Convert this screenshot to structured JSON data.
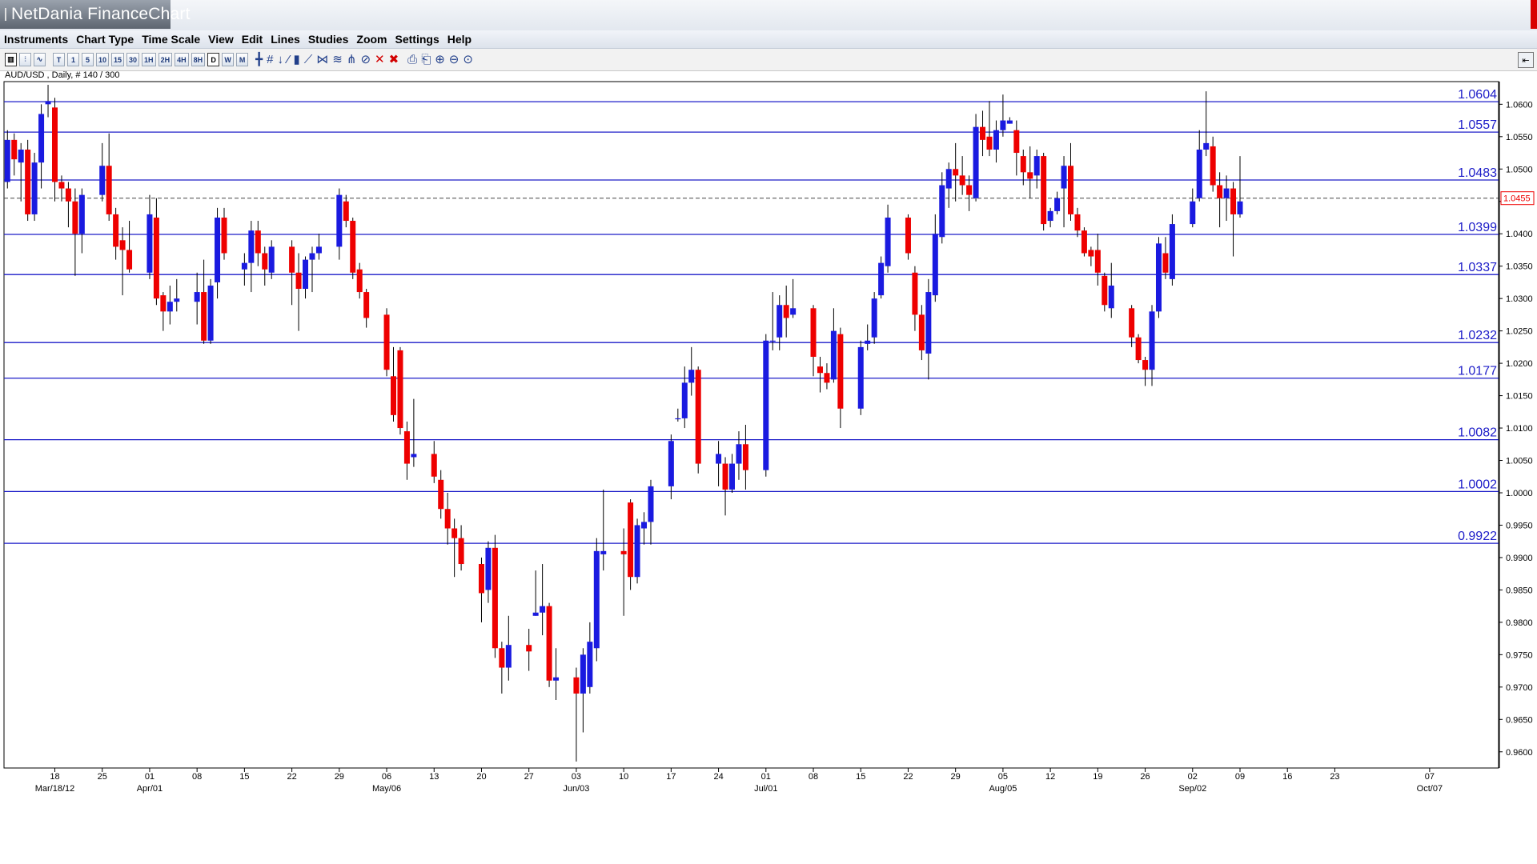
{
  "window": {
    "title": "NetDania FinanceChart"
  },
  "menu": [
    "Instruments",
    "Chart Type",
    "Time Scale",
    "View",
    "Edit",
    "Lines",
    "Studies",
    "Zoom",
    "Settings",
    "Help"
  ],
  "toolbar": {
    "timeframes": [
      "T",
      "1",
      "5",
      "10",
      "15",
      "30",
      "1H",
      "2H",
      "4H",
      "8H",
      "D",
      "W",
      "M"
    ],
    "active_timeframe": "D"
  },
  "instrument_label": "AUD/USD , Daily, # 140 / 300",
  "chart_data": {
    "type": "candlestick",
    "instrument": "AUD/USD",
    "interval": "Daily",
    "ylim": [
      0.9575,
      1.0635
    ],
    "y_ticks": [
      "1.0600",
      "1.0550",
      "1.0500",
      "1.0450",
      "1.0400",
      "1.0350",
      "1.0300",
      "1.0250",
      "1.0200",
      "1.0150",
      "1.0100",
      "1.0050",
      "1.0000",
      "0.9950",
      "0.9900",
      "0.9850",
      "0.9800",
      "0.9750",
      "0.9700",
      "0.9650",
      "0.9600"
    ],
    "x_ticks": [
      {
        "d": 0,
        "label": "18",
        "month": "Mar/18/12"
      },
      {
        "d": 7,
        "label": "25"
      },
      {
        "d": 14,
        "label": "01",
        "month": "Apr/01"
      },
      {
        "d": 21,
        "label": "08"
      },
      {
        "d": 28,
        "label": "15"
      },
      {
        "d": 35,
        "label": "22"
      },
      {
        "d": 42,
        "label": "29"
      },
      {
        "d": 49,
        "label": "06",
        "month": "May/06"
      },
      {
        "d": 56,
        "label": "13"
      },
      {
        "d": 63,
        "label": "20"
      },
      {
        "d": 70,
        "label": "27"
      },
      {
        "d": 77,
        "label": "03",
        "month": "Jun/03"
      },
      {
        "d": 84,
        "label": "10"
      },
      {
        "d": 91,
        "label": "17"
      },
      {
        "d": 98,
        "label": "24"
      },
      {
        "d": 105,
        "label": "01",
        "month": "Jul/01"
      },
      {
        "d": 112,
        "label": "08"
      },
      {
        "d": 119,
        "label": "15"
      },
      {
        "d": 126,
        "label": "22"
      },
      {
        "d": 133,
        "label": "29"
      },
      {
        "d": 140,
        "label": "05",
        "month": "Aug/05"
      },
      {
        "d": 147,
        "label": "12"
      },
      {
        "d": 154,
        "label": "19"
      },
      {
        "d": 161,
        "label": "26"
      },
      {
        "d": 168,
        "label": "02",
        "month": "Sep/02"
      },
      {
        "d": 175,
        "label": "09"
      },
      {
        "d": 182,
        "label": "16"
      },
      {
        "d": 189,
        "label": "23"
      },
      {
        "d": 203,
        "label": "07",
        "month": "Oct/07"
      }
    ],
    "horizontal_lines": [
      1.0604,
      1.0557,
      1.0483,
      1.0399,
      1.0337,
      1.0232,
      1.0177,
      1.0082,
      1.0002,
      0.9922
    ],
    "horizontal_line_labels": [
      "1.0604",
      "1.0557",
      "1.0483",
      "1.0399",
      "1.0337",
      "1.0232",
      "1.0177",
      "1.0082",
      "1.0002",
      "0.9922"
    ],
    "current_price": 1.0455,
    "current_price_label": "1.0455",
    "candles": [
      {
        "d": -7,
        "o": 1.048,
        "h": 1.056,
        "l": 1.047,
        "c": 1.0545
      },
      {
        "d": -6,
        "o": 1.0545,
        "h": 1.0555,
        "l": 1.049,
        "c": 1.0515
      },
      {
        "d": -5,
        "o": 1.051,
        "h": 1.054,
        "l": 1.045,
        "c": 1.053
      },
      {
        "d": -4,
        "o": 1.053,
        "h": 1.0545,
        "l": 1.042,
        "c": 1.043
      },
      {
        "d": -3,
        "o": 1.043,
        "h": 1.0525,
        "l": 1.042,
        "c": 1.051
      },
      {
        "d": -2,
        "o": 1.051,
        "h": 1.06,
        "l": 1.047,
        "c": 1.0585
      },
      {
        "d": -1,
        "o": 1.06,
        "h": 1.063,
        "l": 1.058,
        "c": 1.0605
      },
      {
        "d": 0,
        "o": 1.0595,
        "h": 1.061,
        "l": 1.045,
        "c": 1.048
      },
      {
        "d": 1,
        "o": 1.048,
        "h": 1.049,
        "l": 1.045,
        "c": 1.047
      },
      {
        "d": 2,
        "o": 1.047,
        "h": 1.048,
        "l": 1.041,
        "c": 1.045
      },
      {
        "d": 3,
        "o": 1.045,
        "h": 1.047,
        "l": 1.0335,
        "c": 1.04
      },
      {
        "d": 4,
        "o": 1.04,
        "h": 1.047,
        "l": 1.037,
        "c": 1.046
      },
      {
        "d": 7,
        "o": 1.046,
        "h": 1.054,
        "l": 1.045,
        "c": 1.0505
      },
      {
        "d": 8,
        "o": 1.0505,
        "h": 1.0555,
        "l": 1.042,
        "c": 1.043
      },
      {
        "d": 9,
        "o": 1.043,
        "h": 1.044,
        "l": 1.036,
        "c": 1.038
      },
      {
        "d": 10,
        "o": 1.039,
        "h": 1.041,
        "l": 1.0305,
        "c": 1.0375
      },
      {
        "d": 11,
        "o": 1.0375,
        "h": 1.042,
        "l": 1.034,
        "c": 1.0345
      },
      {
        "d": 14,
        "o": 1.034,
        "h": 1.046,
        "l": 1.033,
        "c": 1.043
      },
      {
        "d": 15,
        "o": 1.0425,
        "h": 1.0455,
        "l": 1.029,
        "c": 1.03
      },
      {
        "d": 16,
        "o": 1.0305,
        "h": 1.031,
        "l": 1.025,
        "c": 1.028
      },
      {
        "d": 17,
        "o": 1.028,
        "h": 1.032,
        "l": 1.026,
        "c": 1.0295
      },
      {
        "d": 18,
        "o": 1.0295,
        "h": 1.033,
        "l": 1.028,
        "c": 1.03
      },
      {
        "d": 21,
        "o": 1.0295,
        "h": 1.034,
        "l": 1.026,
        "c": 1.031
      },
      {
        "d": 22,
        "o": 1.031,
        "h": 1.036,
        "l": 1.023,
        "c": 1.0235
      },
      {
        "d": 23,
        "o": 1.0235,
        "h": 1.033,
        "l": 1.023,
        "c": 1.032
      },
      {
        "d": 24,
        "o": 1.0325,
        "h": 1.044,
        "l": 1.03,
        "c": 1.0425
      },
      {
        "d": 25,
        "o": 1.0425,
        "h": 1.044,
        "l": 1.036,
        "c": 1.037
      },
      {
        "d": 28,
        "o": 1.0345,
        "h": 1.037,
        "l": 1.032,
        "c": 1.0355
      },
      {
        "d": 29,
        "o": 1.0355,
        "h": 1.042,
        "l": 1.031,
        "c": 1.0405
      },
      {
        "d": 30,
        "o": 1.0405,
        "h": 1.042,
        "l": 1.035,
        "c": 1.037
      },
      {
        "d": 31,
        "o": 1.037,
        "h": 1.038,
        "l": 1.032,
        "c": 1.0345
      },
      {
        "d": 32,
        "o": 1.034,
        "h": 1.039,
        "l": 1.033,
        "c": 1.038
      },
      {
        "d": 35,
        "o": 1.038,
        "h": 1.039,
        "l": 1.029,
        "c": 1.034
      },
      {
        "d": 36,
        "o": 1.034,
        "h": 1.037,
        "l": 1.025,
        "c": 1.0315
      },
      {
        "d": 37,
        "o": 1.0315,
        "h": 1.0365,
        "l": 1.03,
        "c": 1.036
      },
      {
        "d": 38,
        "o": 1.036,
        "h": 1.038,
        "l": 1.031,
        "c": 1.037
      },
      {
        "d": 39,
        "o": 1.037,
        "h": 1.04,
        "l": 1.036,
        "c": 1.038
      },
      {
        "d": 42,
        "o": 1.038,
        "h": 1.047,
        "l": 1.036,
        "c": 1.046
      },
      {
        "d": 43,
        "o": 1.045,
        "h": 1.046,
        "l": 1.041,
        "c": 1.042
      },
      {
        "d": 44,
        "o": 1.042,
        "h": 1.0425,
        "l": 1.033,
        "c": 1.034
      },
      {
        "d": 45,
        "o": 1.0345,
        "h": 1.0355,
        "l": 1.03,
        "c": 1.031
      },
      {
        "d": 46,
        "o": 1.031,
        "h": 1.0315,
        "l": 1.0255,
        "c": 1.027
      },
      {
        "d": 49,
        "o": 1.0275,
        "h": 1.0285,
        "l": 1.018,
        "c": 1.019
      },
      {
        "d": 50,
        "o": 1.018,
        "h": 1.0225,
        "l": 1.011,
        "c": 1.012
      },
      {
        "d": 51,
        "o": 1.022,
        "h": 1.0225,
        "l": 1.009,
        "c": 1.01
      },
      {
        "d": 52,
        "o": 1.0095,
        "h": 1.011,
        "l": 1.002,
        "c": 1.0045
      },
      {
        "d": 53,
        "o": 1.0055,
        "h": 1.0145,
        "l": 1.004,
        "c": 1.006
      },
      {
        "d": 56,
        "o": 1.006,
        "h": 1.008,
        "l": 1.0015,
        "c": 1.0025
      },
      {
        "d": 57,
        "o": 1.002,
        "h": 1.0035,
        "l": 0.996,
        "c": 0.9975
      },
      {
        "d": 58,
        "o": 0.9975,
        "h": 1.0,
        "l": 0.992,
        "c": 0.9945
      },
      {
        "d": 59,
        "o": 0.9945,
        "h": 0.996,
        "l": 0.987,
        "c": 0.993
      },
      {
        "d": 60,
        "o": 0.993,
        "h": 0.995,
        "l": 0.988,
        "c": 0.989
      },
      {
        "d": 63,
        "o": 0.989,
        "h": 0.99,
        "l": 0.98,
        "c": 0.9845
      },
      {
        "d": 64,
        "o": 0.985,
        "h": 0.9925,
        "l": 0.983,
        "c": 0.9915
      },
      {
        "d": 65,
        "o": 0.9915,
        "h": 0.9935,
        "l": 0.9745,
        "c": 0.976
      },
      {
        "d": 66,
        "o": 0.976,
        "h": 0.977,
        "l": 0.969,
        "c": 0.973
      },
      {
        "d": 67,
        "o": 0.973,
        "h": 0.981,
        "l": 0.971,
        "c": 0.9765
      },
      {
        "d": 70,
        "o": 0.9765,
        "h": 0.979,
        "l": 0.9725,
        "c": 0.9755
      },
      {
        "d": 71,
        "o": 0.981,
        "h": 0.988,
        "l": 0.981,
        "c": 0.9815
      },
      {
        "d": 72,
        "o": 0.9815,
        "h": 0.989,
        "l": 0.978,
        "c": 0.9825
      },
      {
        "d": 73,
        "o": 0.9825,
        "h": 0.983,
        "l": 0.97,
        "c": 0.971
      },
      {
        "d": 74,
        "o": 0.971,
        "h": 0.976,
        "l": 0.968,
        "c": 0.9715
      },
      {
        "d": 77,
        "o": 0.9715,
        "h": 0.973,
        "l": 0.9585,
        "c": 0.969
      },
      {
        "d": 78,
        "o": 0.969,
        "h": 0.976,
        "l": 0.963,
        "c": 0.975
      },
      {
        "d": 79,
        "o": 0.97,
        "h": 0.98,
        "l": 0.969,
        "c": 0.977
      },
      {
        "d": 80,
        "o": 0.976,
        "h": 0.993,
        "l": 0.974,
        "c": 0.991
      },
      {
        "d": 81,
        "o": 0.9905,
        "h": 1.0005,
        "l": 0.988,
        "c": 0.991
      },
      {
        "d": 84,
        "o": 0.991,
        "h": 0.9945,
        "l": 0.981,
        "c": 0.9905
      },
      {
        "d": 85,
        "o": 0.9985,
        "h": 0.999,
        "l": 0.985,
        "c": 0.987
      },
      {
        "d": 86,
        "o": 0.987,
        "h": 0.996,
        "l": 0.986,
        "c": 0.995
      },
      {
        "d": 87,
        "o": 0.9945,
        "h": 0.997,
        "l": 0.992,
        "c": 0.9955
      },
      {
        "d": 88,
        "o": 0.9955,
        "h": 1.002,
        "l": 0.992,
        "c": 1.001
      },
      {
        "d": 91,
        "o": 1.001,
        "h": 1.009,
        "l": 0.999,
        "c": 1.008
      },
      {
        "d": 92,
        "o": 1.0115,
        "h": 1.013,
        "l": 1.011,
        "c": 1.0115
      },
      {
        "d": 93,
        "o": 1.0115,
        "h": 1.0195,
        "l": 1.01,
        "c": 1.017
      },
      {
        "d": 94,
        "o": 1.017,
        "h": 1.0225,
        "l": 1.015,
        "c": 1.019
      },
      {
        "d": 95,
        "o": 1.019,
        "h": 1.0195,
        "l": 1.003,
        "c": 1.0045
      },
      {
        "d": 98,
        "o": 1.0045,
        "h": 1.008,
        "l": 1.001,
        "c": 1.006
      },
      {
        "d": 99,
        "o": 1.0045,
        "h": 1.0055,
        "l": 0.9965,
        "c": 1.0005
      },
      {
        "d": 100,
        "o": 1.0005,
        "h": 1.006,
        "l": 1.0,
        "c": 1.0045
      },
      {
        "d": 101,
        "o": 1.0045,
        "h": 1.0095,
        "l": 1.002,
        "c": 1.0075
      },
      {
        "d": 102,
        "o": 1.0075,
        "h": 1.0105,
        "l": 1.0005,
        "c": 1.0035
      },
      {
        "d": 105,
        "o": 1.0035,
        "h": 1.0245,
        "l": 1.0025,
        "c": 1.0235
      },
      {
        "d": 106,
        "o": 1.0235,
        "h": 1.031,
        "l": 1.022,
        "c": 1.0235
      },
      {
        "d": 107,
        "o": 1.024,
        "h": 1.0305,
        "l": 1.022,
        "c": 1.029
      },
      {
        "d": 108,
        "o": 1.029,
        "h": 1.032,
        "l": 1.024,
        "c": 1.027
      },
      {
        "d": 109,
        "o": 1.0275,
        "h": 1.033,
        "l": 1.027,
        "c": 1.0285
      },
      {
        "d": 112,
        "o": 1.0285,
        "h": 1.029,
        "l": 1.018,
        "c": 1.021
      },
      {
        "d": 113,
        "o": 1.0195,
        "h": 1.021,
        "l": 1.0155,
        "c": 1.0185
      },
      {
        "d": 114,
        "o": 1.0185,
        "h": 1.02,
        "l": 1.016,
        "c": 1.017
      },
      {
        "d": 115,
        "o": 1.0175,
        "h": 1.0285,
        "l": 1.017,
        "c": 1.025
      },
      {
        "d": 116,
        "o": 1.0245,
        "h": 1.0255,
        "l": 1.01,
        "c": 1.013
      },
      {
        "d": 119,
        "o": 1.013,
        "h": 1.0235,
        "l": 1.012,
        "c": 1.0225
      },
      {
        "d": 120,
        "o": 1.023,
        "h": 1.026,
        "l": 1.022,
        "c": 1.0235
      },
      {
        "d": 121,
        "o": 1.024,
        "h": 1.031,
        "l": 1.023,
        "c": 1.03
      },
      {
        "d": 122,
        "o": 1.0305,
        "h": 1.0365,
        "l": 1.03,
        "c": 1.0355
      },
      {
        "d": 123,
        "o": 1.035,
        "h": 1.0445,
        "l": 1.034,
        "c": 1.0425
      },
      {
        "d": 126,
        "o": 1.0425,
        "h": 1.043,
        "l": 1.036,
        "c": 1.037
      },
      {
        "d": 127,
        "o": 1.034,
        "h": 1.035,
        "l": 1.025,
        "c": 1.0275
      },
      {
        "d": 128,
        "o": 1.0275,
        "h": 1.029,
        "l": 1.0205,
        "c": 1.022
      },
      {
        "d": 129,
        "o": 1.0215,
        "h": 1.033,
        "l": 1.0175,
        "c": 1.031
      },
      {
        "d": 130,
        "o": 1.0305,
        "h": 1.043,
        "l": 1.0295,
        "c": 1.04
      },
      {
        "d": 131,
        "o": 1.0395,
        "h": 1.0495,
        "l": 1.0385,
        "c": 1.0475
      },
      {
        "d": 132,
        "o": 1.047,
        "h": 1.051,
        "l": 1.044,
        "c": 1.05
      },
      {
        "d": 133,
        "o": 1.05,
        "h": 1.054,
        "l": 1.045,
        "c": 1.049
      },
      {
        "d": 134,
        "o": 1.049,
        "h": 1.052,
        "l": 1.046,
        "c": 1.0475
      },
      {
        "d": 135,
        "o": 1.0475,
        "h": 1.049,
        "l": 1.0435,
        "c": 1.046
      },
      {
        "d": 136,
        "o": 1.0455,
        "h": 1.0585,
        "l": 1.045,
        "c": 1.0565
      },
      {
        "d": 137,
        "o": 1.0565,
        "h": 1.059,
        "l": 1.052,
        "c": 1.0545
      },
      {
        "d": 138,
        "o": 1.055,
        "h": 1.0605,
        "l": 1.052,
        "c": 1.053
      },
      {
        "d": 139,
        "o": 1.053,
        "h": 1.0575,
        "l": 1.051,
        "c": 1.056
      },
      {
        "d": 140,
        "o": 1.056,
        "h": 1.0615,
        "l": 1.055,
        "c": 1.0575
      },
      {
        "d": 141,
        "o": 1.057,
        "h": 1.058,
        "l": 1.057,
        "c": 1.0575
      },
      {
        "d": 142,
        "o": 1.056,
        "h": 1.0575,
        "l": 1.049,
        "c": 1.0525
      },
      {
        "d": 143,
        "o": 1.052,
        "h": 1.053,
        "l": 1.0475,
        "c": 1.0495
      },
      {
        "d": 144,
        "o": 1.0495,
        "h": 1.0535,
        "l": 1.0455,
        "c": 1.0485
      },
      {
        "d": 145,
        "o": 1.049,
        "h": 1.053,
        "l": 1.047,
        "c": 1.052
      },
      {
        "d": 146,
        "o": 1.052,
        "h": 1.0525,
        "l": 1.0405,
        "c": 1.0415
      },
      {
        "d": 147,
        "o": 1.042,
        "h": 1.044,
        "l": 1.041,
        "c": 1.0435
      },
      {
        "d": 148,
        "o": 1.0435,
        "h": 1.0465,
        "l": 1.043,
        "c": 1.0455
      },
      {
        "d": 149,
        "o": 1.047,
        "h": 1.052,
        "l": 1.041,
        "c": 1.0505
      },
      {
        "d": 150,
        "o": 1.0505,
        "h": 1.054,
        "l": 1.042,
        "c": 1.043
      },
      {
        "d": 151,
        "o": 1.043,
        "h": 1.044,
        "l": 1.0395,
        "c": 1.0405
      },
      {
        "d": 152,
        "o": 1.0405,
        "h": 1.041,
        "l": 1.0365,
        "c": 1.037
      },
      {
        "d": 153,
        "o": 1.0375,
        "h": 1.038,
        "l": 1.035,
        "c": 1.0365
      },
      {
        "d": 154,
        "o": 1.0375,
        "h": 1.04,
        "l": 1.032,
        "c": 1.034
      },
      {
        "d": 155,
        "o": 1.0335,
        "h": 1.034,
        "l": 1.028,
        "c": 1.029
      },
      {
        "d": 156,
        "o": 1.0285,
        "h": 1.0355,
        "l": 1.027,
        "c": 1.032
      },
      {
        "d": 159,
        "o": 1.0285,
        "h": 1.029,
        "l": 1.0225,
        "c": 1.024
      },
      {
        "d": 160,
        "o": 1.024,
        "h": 1.0245,
        "l": 1.02,
        "c": 1.0205
      },
      {
        "d": 161,
        "o": 1.0205,
        "h": 1.021,
        "l": 1.0165,
        "c": 1.019
      },
      {
        "d": 162,
        "o": 1.019,
        "h": 1.029,
        "l": 1.0165,
        "c": 1.028
      },
      {
        "d": 163,
        "o": 1.028,
        "h": 1.0395,
        "l": 1.027,
        "c": 1.0385
      },
      {
        "d": 164,
        "o": 1.037,
        "h": 1.0395,
        "l": 1.033,
        "c": 1.034
      },
      {
        "d": 165,
        "o": 1.033,
        "h": 1.043,
        "l": 1.032,
        "c": 1.0415
      },
      {
        "d": 168,
        "o": 1.0415,
        "h": 1.047,
        "l": 1.041,
        "c": 1.045
      },
      {
        "d": 169,
        "o": 1.0455,
        "h": 1.056,
        "l": 1.045,
        "c": 1.053
      },
      {
        "d": 170,
        "o": 1.053,
        "h": 1.062,
        "l": 1.052,
        "c": 1.054
      },
      {
        "d": 171,
        "o": 1.0535,
        "h": 1.055,
        "l": 1.0465,
        "c": 1.0475
      },
      {
        "d": 172,
        "o": 1.0475,
        "h": 1.0495,
        "l": 1.041,
        "c": 1.0455
      },
      {
        "d": 173,
        "o": 1.0455,
        "h": 1.049,
        "l": 1.042,
        "c": 1.047
      },
      {
        "d": 174,
        "o": 1.047,
        "h": 1.048,
        "l": 1.0365,
        "c": 1.043
      },
      {
        "d": 175,
        "o": 1.043,
        "h": 1.052,
        "l": 1.0425,
        "c": 1.045
      }
    ]
  }
}
